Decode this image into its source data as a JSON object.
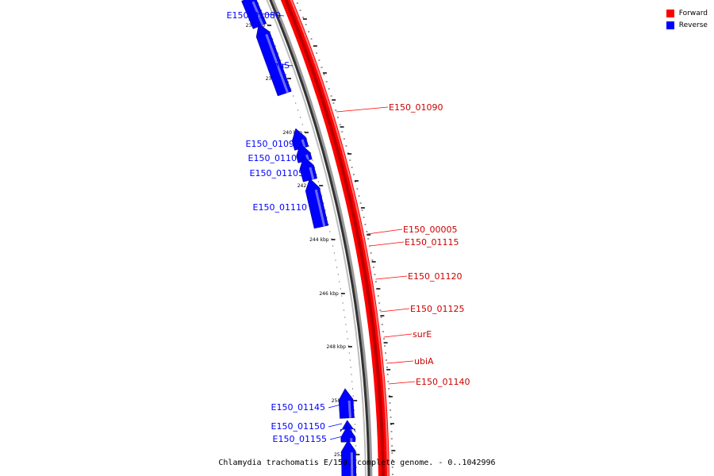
{
  "legend": [
    {
      "label": "Forward",
      "color": "#ff0000"
    },
    {
      "label": "Reverse",
      "color": "#0000ff"
    }
  ],
  "caption": "Chlamydia trachomatis E/150, complete genome. - 0..1042996",
  "ticks": [
    {
      "kbp": 236,
      "label": "236 kbp"
    },
    {
      "kbp": 238,
      "label": "238 kbp"
    },
    {
      "kbp": 240,
      "label": "240 kbp"
    },
    {
      "kbp": 242,
      "label": "242 kbp"
    },
    {
      "kbp": 244,
      "label": "244 kbp"
    },
    {
      "kbp": 246,
      "label": "246 kbp"
    },
    {
      "kbp": 248,
      "label": "248 kbp"
    },
    {
      "kbp": 250,
      "label": "250 kbp"
    },
    {
      "kbp": 252,
      "label": "252 kbp"
    }
  ],
  "forward_genes": [
    "E150_01090",
    "E150_00005",
    "E150_01115",
    "E150_01120",
    "E150_01125",
    "surE",
    "ubiA",
    "E150_01140"
  ],
  "reverse_genes": [
    "E150_01080",
    "leuS",
    "E150_01095",
    "E150_01100",
    "E150_01105",
    "E150_01110",
    "E150_01145",
    "E150_01150",
    "E150_01155"
  ]
}
